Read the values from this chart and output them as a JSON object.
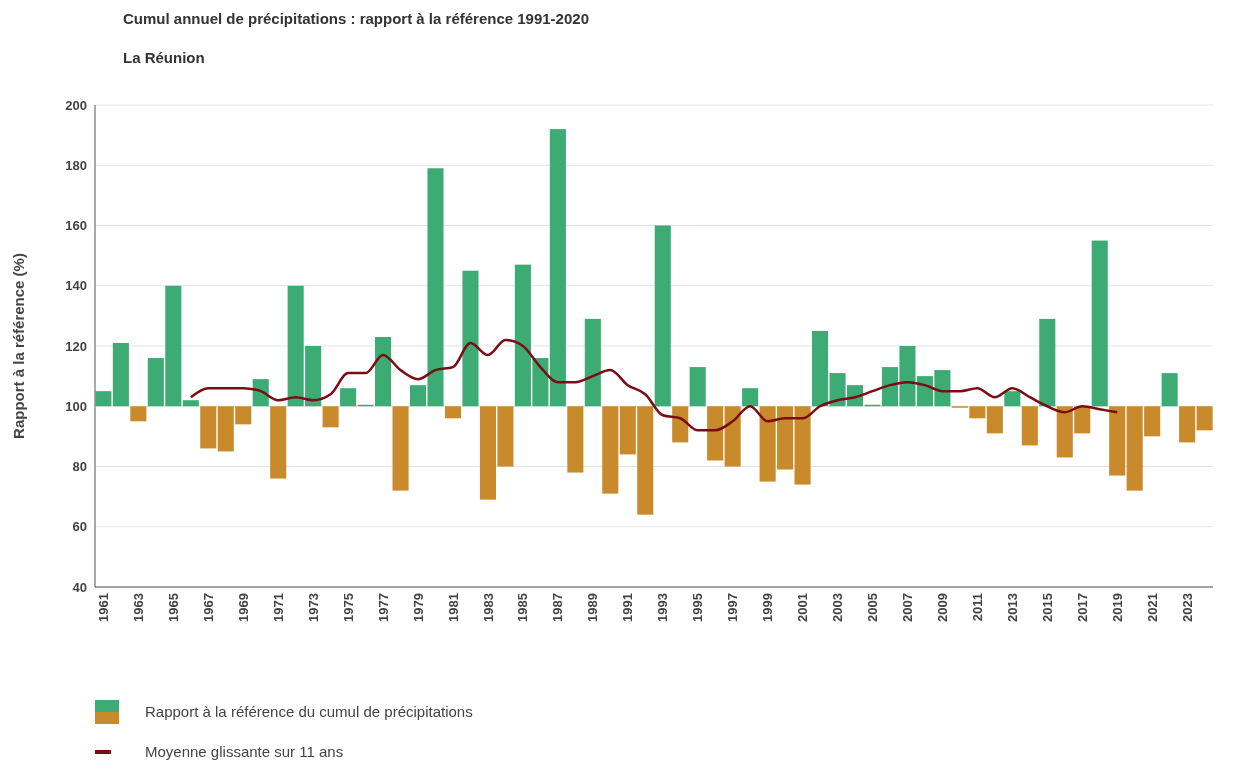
{
  "chart_data": {
    "type": "bar",
    "title": "Cumul annuel de précipitations : rapport à la référence 1991-2020",
    "subtitle": "La Réunion",
    "ylabel": "Rapport à la référence (%)",
    "categories": [
      "1961",
      null,
      "1963",
      null,
      "1965",
      null,
      "1967",
      null,
      "1969",
      null,
      "1971",
      null,
      "1973",
      null,
      "1975",
      null,
      "1977",
      null,
      "1979",
      null,
      "1981",
      null,
      "1983",
      null,
      "1985",
      null,
      "1987",
      null,
      "1989",
      null,
      "1991",
      null,
      "1993",
      null,
      "1995",
      null,
      "1997",
      null,
      "1999",
      null,
      "2001",
      null,
      "2003",
      null,
      "2005",
      null,
      "2007",
      null,
      "2009",
      null,
      "2011",
      null,
      "2013",
      null,
      "2015",
      null,
      "2017",
      null,
      "2019",
      null,
      "2021",
      null,
      "2023",
      null
    ],
    "ylim": [
      40,
      200
    ],
    "yticks": [
      40,
      60,
      80,
      100,
      120,
      140,
      160,
      180,
      200
    ],
    "grid": "y",
    "legend": "bottom left",
    "series": [
      {
        "name": "Rapport à la référence du cumul de précipitations",
        "base": [
          100,
          100,
          100,
          100,
          100,
          100,
          100,
          100,
          100,
          100,
          100,
          100,
          100,
          100,
          100,
          100,
          100,
          100,
          100,
          100,
          100,
          100,
          100,
          100,
          100,
          100,
          100,
          100,
          100,
          100,
          100,
          100,
          100,
          100,
          100,
          100,
          100,
          100,
          100,
          100,
          100,
          100,
          100,
          100,
          100,
          100,
          100,
          100,
          100,
          100,
          100,
          100,
          100,
          100,
          100,
          100,
          100,
          100,
          100,
          100,
          100,
          100,
          100,
          100
        ],
        "values": [
          5,
          21,
          -5,
          16,
          40,
          2,
          -14,
          -15,
          -6,
          9,
          -24,
          40,
          20,
          -7,
          6,
          0.5,
          23,
          -28,
          7,
          79,
          -4,
          45,
          -31,
          -20,
          47,
          16,
          92,
          -22,
          29,
          -29,
          -16,
          -36,
          60,
          -12,
          13,
          -18,
          -20,
          6,
          -25,
          -21,
          -26,
          25,
          11,
          7,
          0.5,
          13,
          20,
          10,
          12,
          -0.5,
          -4,
          -9,
          5,
          -13,
          29,
          -17,
          -9,
          55,
          -23,
          -28,
          -10,
          11,
          -12,
          -8
        ],
        "colors": [
          "#3dab74",
          "#3dab74",
          "#c98a2b",
          "#3dab74",
          "#3dab74",
          "#3dab74",
          "#c98a2b",
          "#c98a2b",
          "#c98a2b",
          "#3dab74",
          "#c98a2b",
          "#3dab74",
          "#3dab74",
          "#c98a2b",
          "#3dab74",
          "#3dab74",
          "#3dab74",
          "#c98a2b",
          "#3dab74",
          "#3dab74",
          "#c98a2b",
          "#3dab74",
          "#c98a2b",
          "#c98a2b",
          "#3dab74",
          "#3dab74",
          "#3dab74",
          "#c98a2b",
          "#3dab74",
          "#c98a2b",
          "#c98a2b",
          "#c98a2b",
          "#3dab74",
          "#c98a2b",
          "#3dab74",
          "#c98a2b",
          "#c98a2b",
          "#3dab74",
          "#c98a2b",
          "#c98a2b",
          "#c98a2b",
          "#3dab74",
          "#3dab74",
          "#3dab74",
          "#3dab74",
          "#3dab74",
          "#3dab74",
          "#3dab74",
          "#3dab74",
          "#c98a2b",
          "#c98a2b",
          "#c98a2b",
          "#3dab74",
          "#c98a2b",
          "#3dab74",
          "#c98a2b",
          "#c98a2b",
          "#3dab74",
          "#c98a2b",
          "#c98a2b",
          "#c98a2b",
          "#3dab74",
          "#c98a2b",
          "#c98a2b"
        ]
      },
      {
        "type": "line",
        "name": "Moyenne glissante sur 11 ans",
        "color": "#7a0c14",
        "values": [
          null,
          null,
          null,
          null,
          null,
          103,
          106,
          106,
          106,
          105,
          102,
          103,
          102,
          104,
          111,
          111,
          117,
          112,
          109,
          112,
          113,
          121,
          117,
          122,
          120,
          113,
          108,
          108,
          110,
          112,
          107,
          104,
          97,
          96,
          92,
          92,
          95,
          100,
          95,
          96,
          96,
          100,
          102,
          103,
          105,
          107,
          108,
          107,
          105,
          105,
          106,
          103,
          106,
          103,
          100,
          98,
          100,
          99,
          98,
          null,
          null,
          null,
          null,
          null
        ]
      }
    ]
  }
}
